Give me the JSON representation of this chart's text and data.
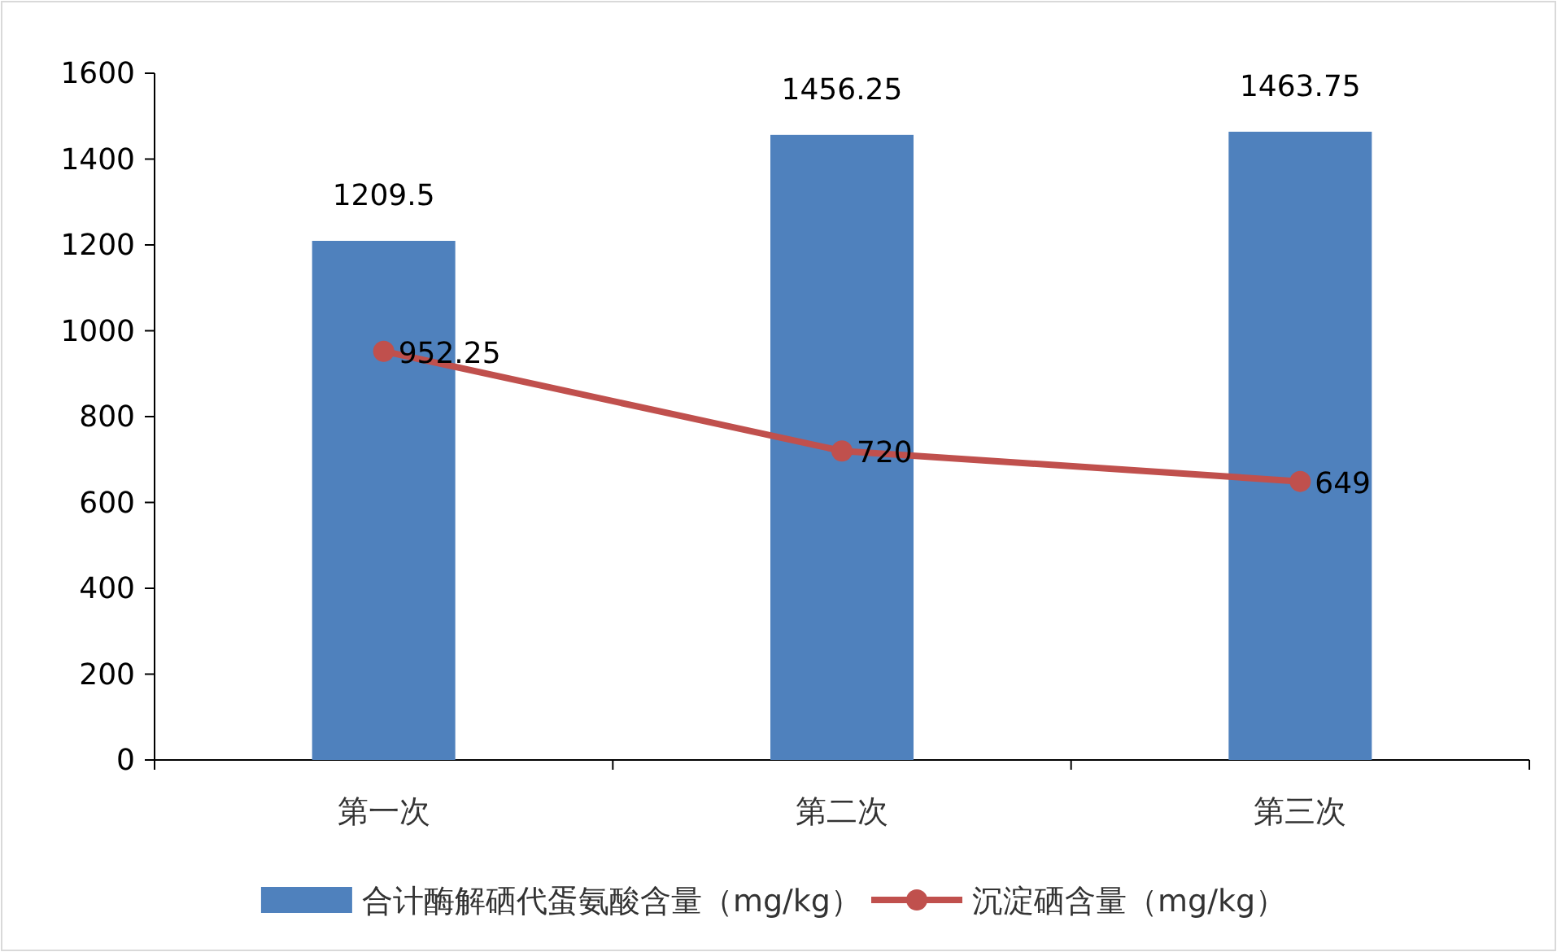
{
  "chart_data": {
    "type": "bar",
    "categories": [
      "第一次",
      "第二次",
      "第三次"
    ],
    "series": [
      {
        "name": "合计酶解硒代蛋氨酸含量（mg/kg）",
        "color": "#4f81bd",
        "values": [
          1209.5,
          1456.25,
          1463.75
        ]
      },
      {
        "name": "沉淀硒含量（mg/kg）",
        "type": "line",
        "color": "#c0504d",
        "values": [
          952.25,
          720,
          649
        ]
      }
    ],
    "ylim": [
      0,
      1600
    ],
    "yticks": [
      0,
      200,
      400,
      600,
      800,
      1000,
      1200,
      1400,
      1600
    ],
    "data_labels": true,
    "legend": "bottom",
    "marker": "circle",
    "grid": false
  }
}
